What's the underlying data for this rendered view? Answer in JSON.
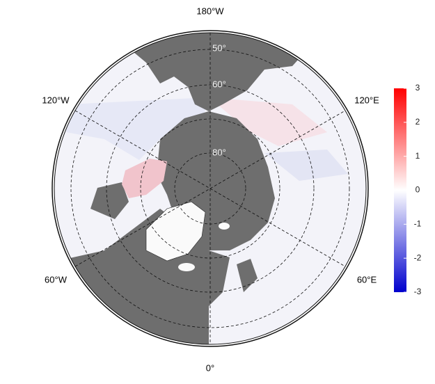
{
  "map": {
    "projection": "north polar stereographic",
    "lon_labels": [
      "180°W",
      "120°W",
      "120°E",
      "60°W",
      "60°E",
      "0°"
    ],
    "lat_labels": [
      "50°",
      "60°",
      "80°"
    ],
    "colorbar": {
      "range": [
        -3,
        3
      ],
      "ticks": [
        3,
        2,
        1,
        0,
        -1,
        -2,
        -3
      ],
      "colors": [
        "#0000cd",
        "#ffffff",
        "#ff0000"
      ]
    }
  }
}
